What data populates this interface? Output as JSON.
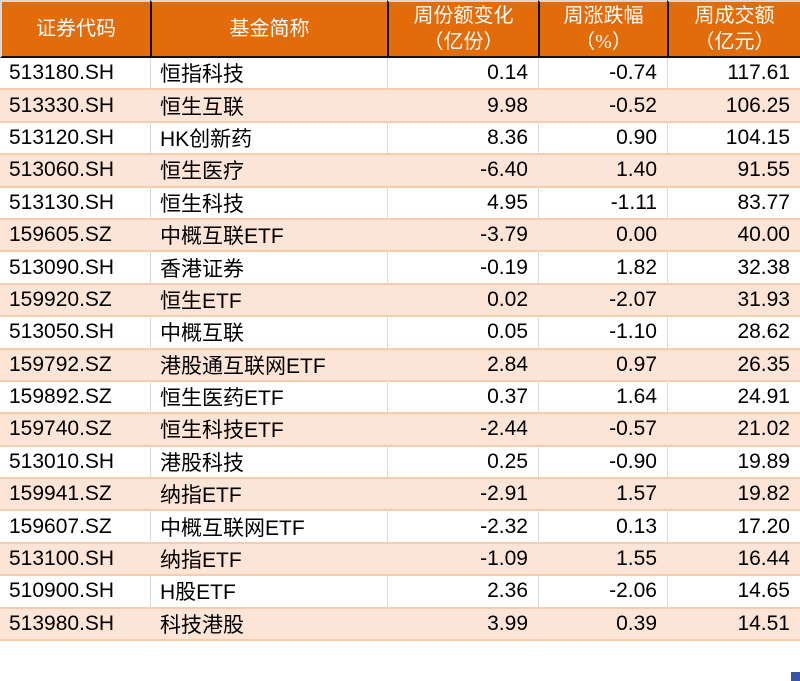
{
  "table": {
    "columns": [
      {
        "key": "code",
        "label": "证券代码"
      },
      {
        "key": "name",
        "label": "基金简称"
      },
      {
        "key": "share_change",
        "label": "周份额变化\n（亿份）"
      },
      {
        "key": "pct_change",
        "label": "周涨跌幅\n（%）"
      },
      {
        "key": "turnover",
        "label": "周成交额\n（亿元）"
      }
    ],
    "rows": [
      {
        "code": "513180.SH",
        "name": "恒指科技",
        "share_change": "0.14",
        "pct_change": "-0.74",
        "turnover": "117.61"
      },
      {
        "code": "513330.SH",
        "name": "恒生互联",
        "share_change": "9.98",
        "pct_change": "-0.52",
        "turnover": "106.25"
      },
      {
        "code": "513120.SH",
        "name": "HK创新药",
        "share_change": "8.36",
        "pct_change": "0.90",
        "turnover": "104.15"
      },
      {
        "code": "513060.SH",
        "name": "恒生医疗",
        "share_change": "-6.40",
        "pct_change": "1.40",
        "turnover": "91.55"
      },
      {
        "code": "513130.SH",
        "name": "恒生科技",
        "share_change": "4.95",
        "pct_change": "-1.11",
        "turnover": "83.77"
      },
      {
        "code": "159605.SZ",
        "name": "中概互联ETF",
        "share_change": "-3.79",
        "pct_change": "0.00",
        "turnover": "40.00"
      },
      {
        "code": "513090.SH",
        "name": "香港证券",
        "share_change": "-0.19",
        "pct_change": "1.82",
        "turnover": "32.38"
      },
      {
        "code": "159920.SZ",
        "name": "恒生ETF",
        "share_change": "0.02",
        "pct_change": "-2.07",
        "turnover": "31.93"
      },
      {
        "code": "513050.SH",
        "name": "中概互联",
        "share_change": "0.05",
        "pct_change": "-1.10",
        "turnover": "28.62"
      },
      {
        "code": "159792.SZ",
        "name": "港股通互联网ETF",
        "share_change": "2.84",
        "pct_change": "0.97",
        "turnover": "26.35"
      },
      {
        "code": "159892.SZ",
        "name": "恒生医药ETF",
        "share_change": "0.37",
        "pct_change": "1.64",
        "turnover": "24.91"
      },
      {
        "code": "159740.SZ",
        "name": "恒生科技ETF",
        "share_change": "-2.44",
        "pct_change": "-0.57",
        "turnover": "21.02"
      },
      {
        "code": "513010.SH",
        "name": "港股科技",
        "share_change": "0.25",
        "pct_change": "-0.90",
        "turnover": "19.89"
      },
      {
        "code": "159941.SZ",
        "name": "纳指ETF",
        "share_change": "-2.91",
        "pct_change": "1.57",
        "turnover": "19.82"
      },
      {
        "code": "159607.SZ",
        "name": "中概互联网ETF",
        "share_change": "-2.32",
        "pct_change": "0.13",
        "turnover": "17.20"
      },
      {
        "code": "513100.SH",
        "name": "纳指ETF",
        "share_change": "-1.09",
        "pct_change": "1.55",
        "turnover": "16.44"
      },
      {
        "code": "510900.SH",
        "name": "H股ETF",
        "share_change": "2.36",
        "pct_change": "-2.06",
        "turnover": "14.65"
      },
      {
        "code": "513980.SH",
        "name": "科技港股",
        "share_change": "3.99",
        "pct_change": "0.39",
        "turnover": "14.51"
      }
    ]
  },
  "colors": {
    "header_bg": "#E26B0A",
    "header_text": "#FFFFFF",
    "header_border": "#111111",
    "row_alt_bg": "#FCE4D6",
    "row_separator": "#F8CBAD",
    "grid_line": "#D9D9D9",
    "fill_handle": "#3A53A4"
  }
}
